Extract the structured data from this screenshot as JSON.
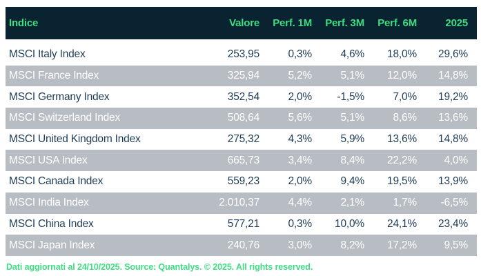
{
  "chart_data": {
    "type": "table",
    "title": "",
    "columns": [
      "Indice",
      "Valore",
      "Perf. 1M",
      "Perf. 3M",
      "Perf. 6M",
      "2025"
    ],
    "rows": [
      [
        "MSCI Italy Index",
        "253,95",
        "0,3%",
        "4,6%",
        "18,0%",
        "29,6%"
      ],
      [
        "MSCI France Index",
        "325,94",
        "5,2%",
        "5,1%",
        "12,0%",
        "14,8%"
      ],
      [
        "MSCI Germany Index",
        "352,54",
        "2,0%",
        "-1,5%",
        "7,0%",
        "19,2%"
      ],
      [
        "MSCI Switzerland Index",
        "508,64",
        "5,6%",
        "5,1%",
        "8,6%",
        "13,6%"
      ],
      [
        "MSCI United Kingdom Index",
        "275,32",
        "4,3%",
        "5,9%",
        "13,6%",
        "14,8%"
      ],
      [
        "MSCI USA Index",
        "665,73",
        "3,4%",
        "8,4%",
        "22,2%",
        "4,0%"
      ],
      [
        "MSCI Canada Index",
        "559,23",
        "2,0%",
        "9,4%",
        "19,5%",
        "13,9%"
      ],
      [
        "MSCI India Index",
        "2.010,37",
        "4,4%",
        "2,1%",
        "1,7%",
        "-6,5%"
      ],
      [
        "MSCI China Index",
        "577,21",
        "0,3%",
        "10,0%",
        "24,1%",
        "23,4%"
      ],
      [
        "MSCI Japan Index",
        "240,76",
        "3,0%",
        "8,2%",
        "17,2%",
        "9,5%"
      ]
    ]
  },
  "footer": {
    "text": "Dati aggiornati al 24/10/2025. Source: Quantalys. © 2025. All rights reserved."
  },
  "colors": {
    "header_bg": "#0a2331",
    "accent_green": "#3edd82",
    "row_alt_bg": "#b7bdc3",
    "row_alt_text": "#ffffff",
    "row_text": "#1f3d57"
  }
}
